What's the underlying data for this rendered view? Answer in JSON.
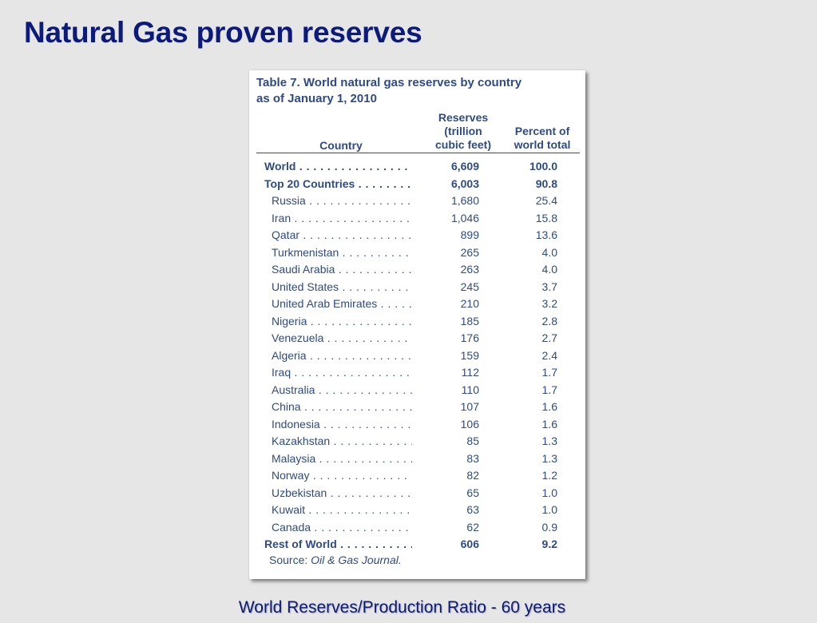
{
  "slide": {
    "title": "Natural Gas proven reserves",
    "footer": "World Reserves/Production Ratio - 60 years"
  },
  "table": {
    "title_line1": "Table 7. World natural gas reserves by country",
    "title_line2": "as of January 1, 2010",
    "headers": {
      "country": "Country",
      "reserves_line1": "Reserves",
      "reserves_line2": "(trillion",
      "reserves_line3": "cubic feet)",
      "percent_line1": "Percent of",
      "percent_line2": "world total"
    },
    "rows": [
      {
        "country": "World",
        "reserves": "6,609",
        "percent": "100.0",
        "bold": true
      },
      {
        "country": "Top 20 Countries",
        "reserves": "6,003",
        "percent": "90.8",
        "bold": true
      },
      {
        "country": "Russia",
        "reserves": "1,680",
        "percent": "25.4",
        "bold": false
      },
      {
        "country": "Iran",
        "reserves": "1,046",
        "percent": "15.8",
        "bold": false
      },
      {
        "country": "Qatar",
        "reserves": "899",
        "percent": "13.6",
        "bold": false
      },
      {
        "country": "Turkmenistan",
        "reserves": "265",
        "percent": "4.0",
        "bold": false
      },
      {
        "country": "Saudi Arabia",
        "reserves": "263",
        "percent": "4.0",
        "bold": false
      },
      {
        "country": "United States",
        "reserves": "245",
        "percent": "3.7",
        "bold": false
      },
      {
        "country": "United Arab Emirates",
        "reserves": "210",
        "percent": "3.2",
        "bold": false
      },
      {
        "country": "Nigeria",
        "reserves": "185",
        "percent": "2.8",
        "bold": false
      },
      {
        "country": "Venezuela",
        "reserves": "176",
        "percent": "2.7",
        "bold": false
      },
      {
        "country": "Algeria",
        "reserves": "159",
        "percent": "2.4",
        "bold": false
      },
      {
        "country": "Iraq",
        "reserves": "112",
        "percent": "1.7",
        "bold": false
      },
      {
        "country": "Australia",
        "reserves": "110",
        "percent": "1.7",
        "bold": false
      },
      {
        "country": "China",
        "reserves": "107",
        "percent": "1.6",
        "bold": false
      },
      {
        "country": "Indonesia",
        "reserves": "106",
        "percent": "1.6",
        "bold": false
      },
      {
        "country": "Kazakhstan",
        "reserves": "85",
        "percent": "1.3",
        "bold": false
      },
      {
        "country": "Malaysia",
        "reserves": "83",
        "percent": "1.3",
        "bold": false
      },
      {
        "country": "Norway",
        "reserves": "82",
        "percent": "1.2",
        "bold": false
      },
      {
        "country": "Uzbekistan",
        "reserves": "65",
        "percent": "1.0",
        "bold": false
      },
      {
        "country": "Kuwait",
        "reserves": "63",
        "percent": "1.0",
        "bold": false
      },
      {
        "country": "Canada",
        "reserves": "62",
        "percent": "0.9",
        "bold": false
      },
      {
        "country": "Rest of World",
        "reserves": "606",
        "percent": "9.2",
        "bold": true
      }
    ],
    "source_label": "Source:",
    "source_name": "Oil & Gas Journal."
  },
  "colors": {
    "slide_title": "#0c1a7c",
    "table_text": "#2e4a8a",
    "background": "#e6e6e6"
  }
}
